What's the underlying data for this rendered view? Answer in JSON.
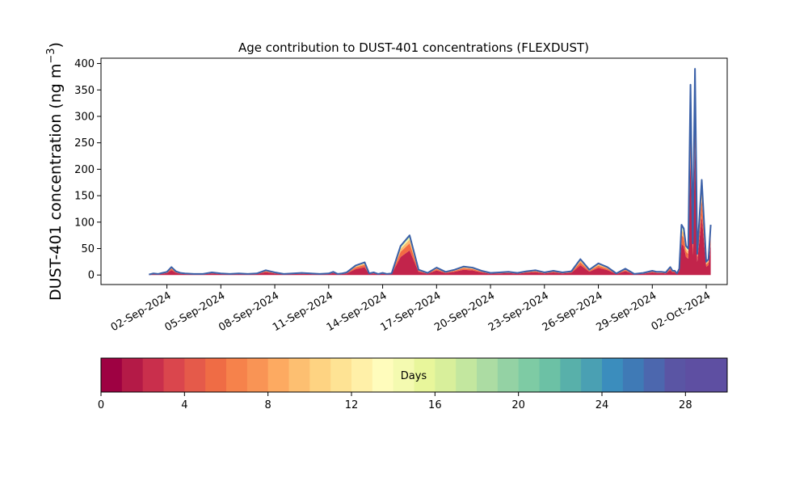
{
  "chart_data": {
    "type": "area",
    "title": "Age contribution to DUST-401 concentrations (FLEXDUST)",
    "ylabel": "DUST-401 concentration (ng m",
    "ylabel_sup": "−3",
    "ylabel_close": ")",
    "xlabel": "",
    "ylim": [
      -18,
      410
    ],
    "yticks": [
      0,
      50,
      100,
      150,
      200,
      250,
      300,
      350,
      400
    ],
    "xlim": [
      "2024-08-29T08:00",
      "2024-10-03T04:00"
    ],
    "xticks": [
      "2024-09-02",
      "2024-09-05",
      "2024-09-08",
      "2024-09-11",
      "2024-09-14",
      "2024-09-17",
      "2024-09-20",
      "2024-09-23",
      "2024-09-26",
      "2024-09-29",
      "2024-10-02"
    ],
    "xtick_labels": [
      "02-Sep-2024",
      "05-Sep-2024",
      "08-Sep-2024",
      "11-Sep-2024",
      "14-Sep-2024",
      "17-Sep-2024",
      "20-Sep-2024",
      "23-Sep-2024",
      "26-Sep-2024",
      "29-Sep-2024",
      "02-Oct-2024"
    ],
    "grid": false,
    "total_series": {
      "name": "",
      "color": "#3a60a8",
      "x": [
        "2024-09-01T00:00",
        "2024-09-01T06:00",
        "2024-09-01T12:00",
        "2024-09-01T18:00",
        "2024-09-02T00:00",
        "2024-09-02T06:00",
        "2024-09-02T12:00",
        "2024-09-02T18:00",
        "2024-09-03T00:00",
        "2024-09-03T12:00",
        "2024-09-04T00:00",
        "2024-09-04T12:00",
        "2024-09-05T00:00",
        "2024-09-05T12:00",
        "2024-09-06T00:00",
        "2024-09-06T12:00",
        "2024-09-07T00:00",
        "2024-09-07T12:00",
        "2024-09-08T00:00",
        "2024-09-08T12:00",
        "2024-09-09T00:00",
        "2024-09-09T12:00",
        "2024-09-10T00:00",
        "2024-09-10T12:00",
        "2024-09-11T00:00",
        "2024-09-11T06:00",
        "2024-09-11T12:00",
        "2024-09-11T18:00",
        "2024-09-12T00:00",
        "2024-09-12T12:00",
        "2024-09-13T00:00",
        "2024-09-13T06:00",
        "2024-09-13T12:00",
        "2024-09-13T18:00",
        "2024-09-14T00:00",
        "2024-09-14T06:00",
        "2024-09-14T12:00",
        "2024-09-15T00:00",
        "2024-09-15T12:00",
        "2024-09-16T00:00",
        "2024-09-16T12:00",
        "2024-09-17T00:00",
        "2024-09-17T12:00",
        "2024-09-18T00:00",
        "2024-09-18T12:00",
        "2024-09-19T00:00",
        "2024-09-19T12:00",
        "2024-09-20T00:00",
        "2024-09-20T12:00",
        "2024-09-21T00:00",
        "2024-09-21T12:00",
        "2024-09-22T00:00",
        "2024-09-22T12:00",
        "2024-09-23T00:00",
        "2024-09-23T12:00",
        "2024-09-24T00:00",
        "2024-09-24T12:00",
        "2024-09-25T00:00",
        "2024-09-25T12:00",
        "2024-09-26T00:00",
        "2024-09-26T12:00",
        "2024-09-27T00:00",
        "2024-09-27T12:00",
        "2024-09-28T00:00",
        "2024-09-28T12:00",
        "2024-09-29T00:00",
        "2024-09-29T06:00",
        "2024-09-29T12:00",
        "2024-09-29T18:00",
        "2024-09-30T00:00",
        "2024-09-30T03:00",
        "2024-09-30T06:00",
        "2024-09-30T09:00",
        "2024-09-30T12:00",
        "2024-09-30T15:00",
        "2024-09-30T18:00",
        "2024-09-30T21:00",
        "2024-10-01T00:00",
        "2024-10-01T03:00",
        "2024-10-01T06:00",
        "2024-10-01T09:00",
        "2024-10-01T12:00",
        "2024-10-01T18:00",
        "2024-10-02T00:00",
        "2024-10-02T03:00",
        "2024-10-02T06:00"
      ],
      "y": [
        1,
        3,
        2,
        4,
        6,
        15,
        7,
        4,
        3,
        2,
        2,
        5,
        3,
        2,
        3,
        2,
        3,
        9,
        5,
        2,
        3,
        4,
        3,
        2,
        3,
        6,
        2,
        3,
        5,
        18,
        24,
        3,
        5,
        2,
        4,
        2,
        3,
        55,
        75,
        10,
        4,
        14,
        6,
        10,
        16,
        14,
        8,
        4,
        5,
        6,
        4,
        7,
        9,
        5,
        8,
        5,
        7,
        30,
        10,
        22,
        15,
        3,
        12,
        2,
        4,
        8,
        6,
        6,
        5,
        15,
        8,
        8,
        3,
        12,
        95,
        88,
        55,
        50,
        360,
        60,
        390,
        40,
        180,
        25,
        30,
        95
      ]
    },
    "stack_split": [
      {
        "label_range": "0-4 days",
        "fraction": 0.62,
        "color": "#c2244b"
      },
      {
        "label_range": "4-8 days",
        "fraction": 0.18,
        "color": "#f26b43"
      },
      {
        "label_range": "8-12 days",
        "fraction": 0.1,
        "color": "#fcbb6d"
      },
      {
        "label_range": "12-16 days",
        "fraction": 0.05,
        "color": "#f4fab0"
      },
      {
        "label_range": "16-20 days",
        "fraction": 0.025,
        "color": "#b5e0a0"
      },
      {
        "label_range": "20-30 days",
        "fraction": 0.025,
        "color": "#5fb7a9"
      }
    ],
    "colorbar": {
      "label": "Days",
      "min": 0,
      "max": 30,
      "ticks": [
        0,
        4,
        8,
        12,
        16,
        20,
        24,
        28
      ],
      "colors": [
        "#9e0142",
        "#b41a47",
        "#c92f4c",
        "#da464d",
        "#e55a4a",
        "#ef6c45",
        "#f6824b",
        "#f99455",
        "#fdaa61",
        "#fdbf71",
        "#fed382",
        "#fee394",
        "#fff0a8",
        "#fffcbc",
        "#f4fab0",
        "#e8f69b",
        "#d8ef9b",
        "#c3e79f",
        "#acdca3",
        "#94d2a4",
        "#7ecba4",
        "#6cc1a5",
        "#58b0aa",
        "#4aa0b3",
        "#3b8dbd",
        "#3f7ab6",
        "#4c67ae",
        "#5a55a4",
        "#5e4fa2",
        "#5e4fa2"
      ]
    }
  }
}
